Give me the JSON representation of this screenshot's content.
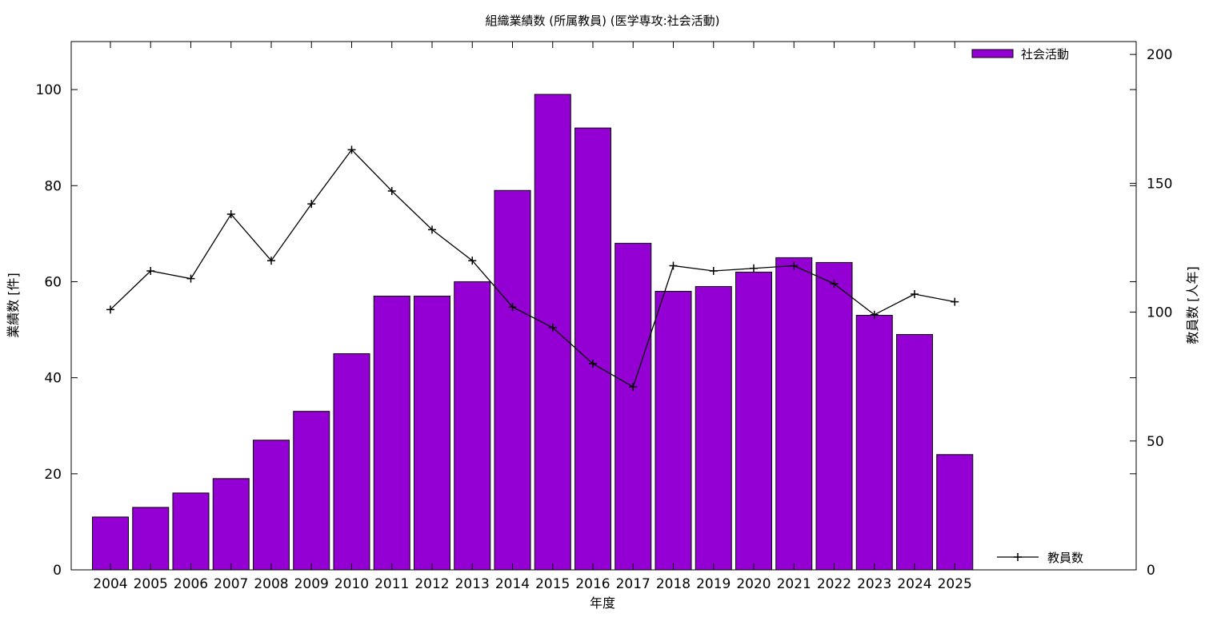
{
  "chart_data": {
    "type": "bar",
    "title": "組織業績数 (所属教員) (医学専攻:社会活動)",
    "xlabel": "年度",
    "ylabel": "業績数 [件]",
    "y2label": "教員数 [人年]",
    "categories": [
      "2004",
      "2005",
      "2006",
      "2007",
      "2008",
      "2009",
      "2010",
      "2011",
      "2012",
      "2013",
      "2014",
      "2015",
      "2016",
      "2017",
      "2018",
      "2019",
      "2020",
      "2021",
      "2022",
      "2023",
      "2024",
      "2025"
    ],
    "series": [
      {
        "name": "社会活動",
        "type": "bar",
        "axis": "left",
        "color": "#9400d3",
        "values": [
          11,
          13,
          16,
          19,
          27,
          33,
          45,
          57,
          57,
          60,
          79,
          99,
          92,
          68,
          58,
          59,
          62,
          65,
          64,
          53,
          49,
          24
        ]
      },
      {
        "name": "教員数",
        "type": "line",
        "axis": "right",
        "color": "#000000",
        "values": [
          101,
          116,
          113,
          138,
          120,
          142,
          163,
          147,
          132,
          120,
          102,
          94,
          80,
          71,
          118,
          116,
          117,
          118,
          111,
          99,
          107,
          104
        ]
      }
    ],
    "ylim": [
      0,
      110
    ],
    "yticks": [
      0,
      20,
      40,
      60,
      80,
      100
    ],
    "y2lim": [
      0,
      205
    ],
    "y2ticks": [
      0,
      50,
      100,
      150,
      200
    ],
    "legend_placement": "top-right",
    "grid": false
  }
}
